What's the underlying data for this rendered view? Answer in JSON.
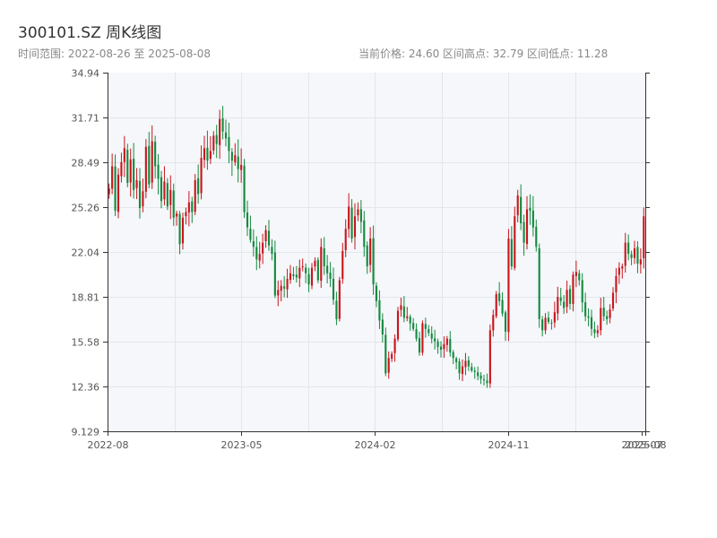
{
  "header": {
    "title": "300101.SZ 周K线图",
    "range_text": "时间范围: 2022-08-26 至 2025-08-08",
    "stats_text": "当前价格: 24.60   区间高点: 32.79   区间低点: 11.28"
  },
  "colors": {
    "up": "#c8161d",
    "down": "#138a3e",
    "plot_bg": "#f5f7fa",
    "grid": "#e3e6ea",
    "axis": "#333333"
  },
  "chart_data": {
    "type": "candlestick",
    "title": "300101.SZ 周K线图",
    "period": "weekly",
    "date_range": [
      "2022-08-26",
      "2025-08-08"
    ],
    "current_price": 24.6,
    "range_high": 32.79,
    "range_low": 11.28,
    "ylim": [
      9.129,
      34.94
    ],
    "y_ticks": [
      "9.129",
      "12.36",
      "15.58",
      "18.81",
      "22.04",
      "25.26",
      "28.49",
      "31.71",
      "34.94"
    ],
    "x_ticks": [
      "2022-08",
      "2023-05",
      "2024-02",
      "2024-11",
      "2025-07",
      "2025-08"
    ],
    "grid": true,
    "legend": "none",
    "closes": [
      26.6,
      28.2,
      25.0,
      27.6,
      28.5,
      29.5,
      27.0,
      28.7,
      26.5,
      27.2,
      25.2,
      26.4,
      29.6,
      26.9,
      30.0,
      28.2,
      27.3,
      25.7,
      27.1,
      25.3,
      26.5,
      24.5,
      24.8,
      22.6,
      24.5,
      24.9,
      25.6,
      24.9,
      27.2,
      26.2,
      28.8,
      29.5,
      28.6,
      29.3,
      30.4,
      29.8,
      31.6,
      30.7,
      30.2,
      29.3,
      28.6,
      29.0,
      28.0,
      28.3,
      24.9,
      23.8,
      22.9,
      22.4,
      21.5,
      21.9,
      22.7,
      23.6,
      22.5,
      21.9,
      18.9,
      19.3,
      19.6,
      19.4,
      20.1,
      20.5,
      20.3,
      20.2,
      20.9,
      21.0,
      20.5,
      19.7,
      20.9,
      21.4,
      20.0,
      22.4,
      21.0,
      20.5,
      20.1,
      18.6,
      17.2,
      20.0,
      22.1,
      23.7,
      25.3,
      23.0,
      24.6,
      25.1,
      24.2,
      22.4,
      21.0,
      23.0,
      19.7,
      18.5,
      17.1,
      16.1,
      13.3,
      14.4,
      14.7,
      15.8,
      17.8,
      18.2,
      17.3,
      17.4,
      16.9,
      16.5,
      15.8,
      14.8,
      16.9,
      16.5,
      16.2,
      15.8,
      15.6,
      15.2,
      15.0,
      15.4,
      15.8,
      14.8,
      14.4,
      14.1,
      13.3,
      13.8,
      14.2,
      13.8,
      13.5,
      13.4,
      13.1,
      12.9,
      12.8,
      12.6,
      16.4,
      17.5,
      19.0,
      18.5,
      17.6,
      16.3,
      23.0,
      21.0,
      24.6,
      26.1,
      24.1,
      22.7,
      25.1,
      25.0,
      23.8,
      22.4,
      17.2,
      16.4,
      17.3,
      17.0,
      16.9,
      17.7,
      18.8,
      18.5,
      18.0,
      19.3,
      18.3,
      20.4,
      20.6,
      20.0,
      18.4,
      17.4,
      17.3,
      16.5,
      16.2,
      16.4,
      18.0,
      17.4,
      17.2,
      17.9,
      19.1,
      20.3,
      20.9,
      21.0,
      22.7,
      21.9,
      21.6,
      22.3,
      21.2,
      21.5,
      24.6
    ]
  }
}
